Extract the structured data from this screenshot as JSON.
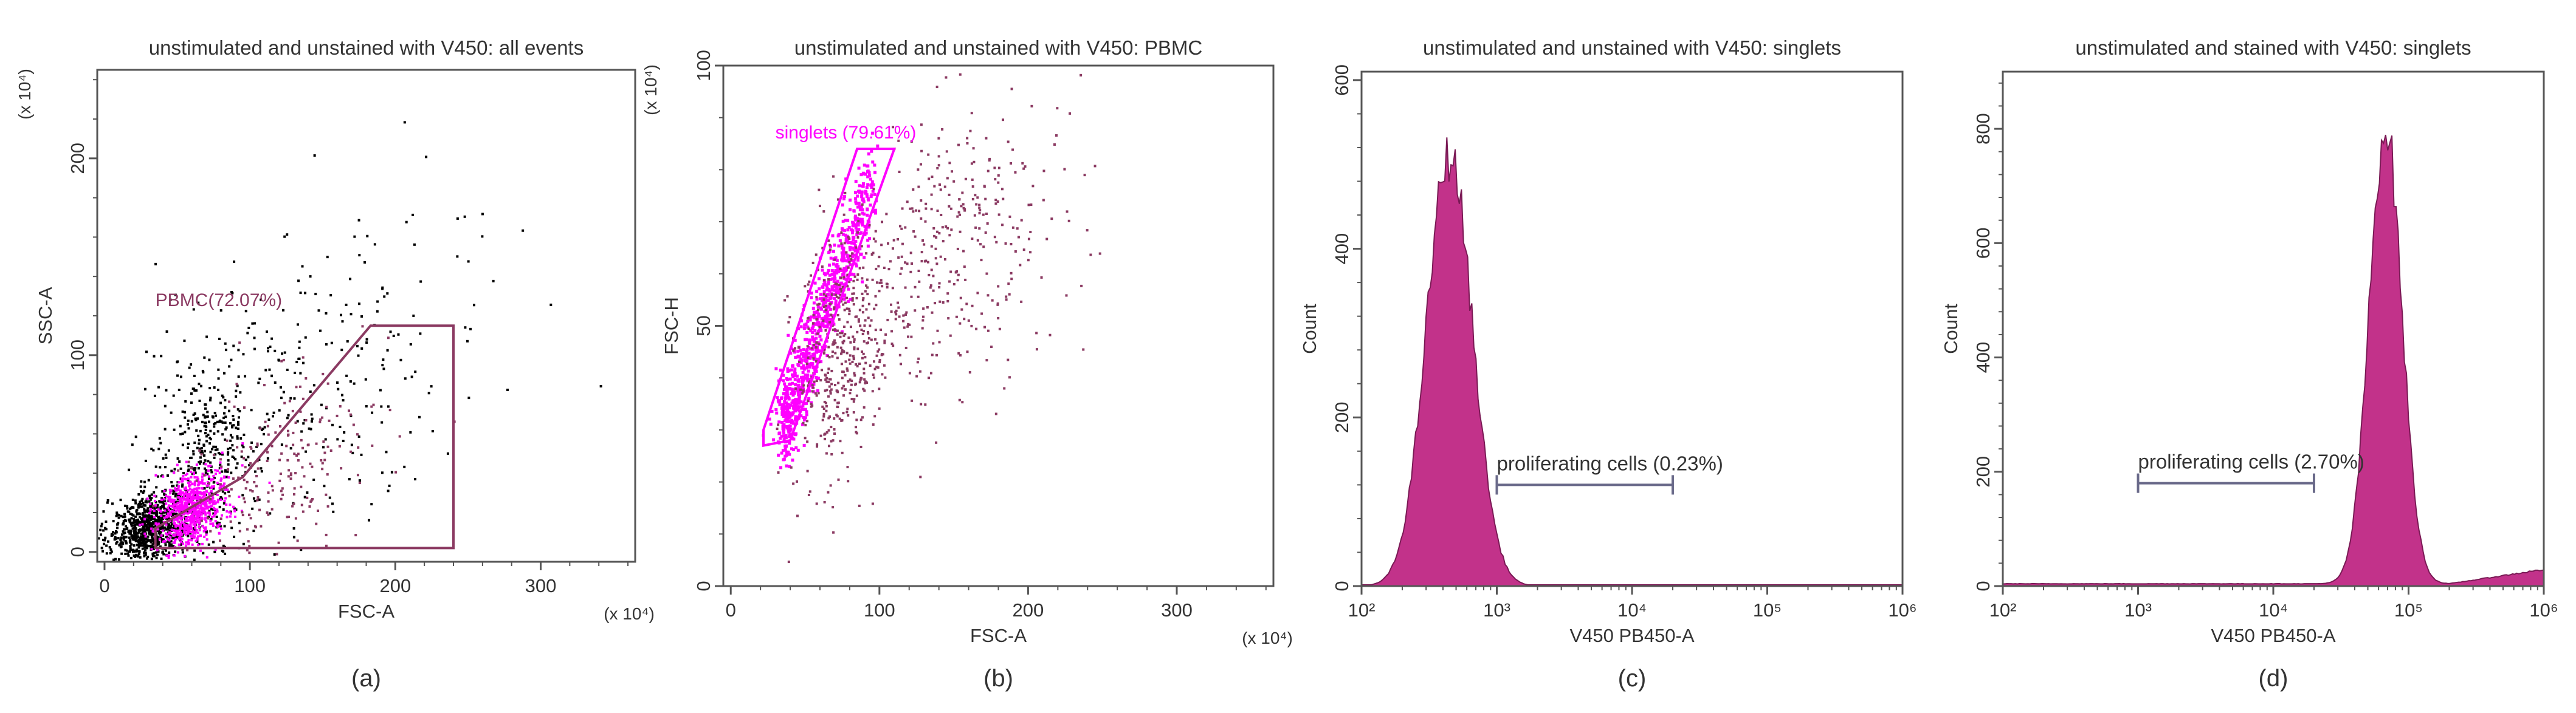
{
  "chart_data": [
    {
      "panel_label": "(a)",
      "type": "scatter",
      "title": "unstimulated and unstained with V450: all events",
      "xlabel": "FSC-A",
      "ylabel": "SSC-A",
      "x_scale_label": "(x 10⁴)",
      "y_scale_label": "(x 10⁴)",
      "xlim": [
        -5,
        365
      ],
      "ylim": [
        -5,
        245
      ],
      "xscale": "linear",
      "yscale": "linear",
      "x_ticks": [
        0,
        100,
        200,
        300
      ],
      "y_ticks": [
        0,
        100,
        200
      ],
      "grid": false,
      "series": [
        {
          "color": "#000000",
          "description": "all events",
          "clusters": [
            {
              "cx": 30,
              "cy": 12,
              "sx": 18,
              "sy": 8,
              "n": 900
            },
            {
              "cx": 70,
              "cy": 45,
              "sx": 25,
              "sy": 25,
              "n": 400
            },
            {
              "cx": 150,
              "cy": 90,
              "sx": 70,
              "sy": 45,
              "n": 250
            }
          ]
        },
        {
          "color": "#ff00ff",
          "description": "PBMC core",
          "clusters": [
            {
              "cx": 60,
              "cy": 22,
              "sx": 14,
              "sy": 9,
              "n": 700
            }
          ]
        },
        {
          "color": "#8b3a62",
          "description": "PBMC tail",
          "clusters": [
            {
              "cx": 120,
              "cy": 45,
              "sx": 40,
              "sy": 20,
              "n": 200
            }
          ]
        }
      ],
      "gate": {
        "label": "PBMC(72.07%)",
        "color": "#8b3a62",
        "polygon": [
          [
            35,
            2
          ],
          [
            240,
            2
          ],
          [
            240,
            115
          ],
          [
            183,
            115
          ],
          [
            95,
            38
          ],
          [
            35,
            12
          ]
        ],
        "label_at": [
          35,
          125
        ]
      }
    },
    {
      "panel_label": "(b)",
      "type": "scatter",
      "title": "unstimulated and unstained with V450: PBMC",
      "xlabel": "FSC-A",
      "ylabel": "FSC-H",
      "x_scale_label": "(x 10⁴)",
      "y_scale_label": "(x 10⁴)",
      "xlim": [
        -5,
        365
      ],
      "ylim": [
        0,
        100
      ],
      "xscale": "linear",
      "yscale": "linear",
      "x_ticks": [
        0,
        100,
        200,
        300
      ],
      "y_ticks": [
        0,
        50,
        100
      ],
      "grid": false,
      "series": [
        {
          "color": "#ff00ff",
          "description": "singlets",
          "diagonal": {
            "x0": 35,
            "y0": 30,
            "x1": 95,
            "y1": 78,
            "sx": 8,
            "sy": 4,
            "n": 900
          }
        },
        {
          "color": "#8b3a62",
          "description": "doublets",
          "clusters": [
            {
              "cx": 75,
              "cy": 45,
              "sx": 22,
              "sy": 12,
              "n": 450
            },
            {
              "cx": 150,
              "cy": 65,
              "sx": 45,
              "sy": 14,
              "n": 350
            }
          ]
        }
      ],
      "gate": {
        "label": "singlets (79.61%)",
        "color": "#ff00ff",
        "polygon": [
          [
            22,
            27
          ],
          [
            40,
            28
          ],
          [
            110,
            84
          ],
          [
            85,
            84
          ],
          [
            22,
            30
          ]
        ],
        "label_at": [
          30,
          86
        ]
      }
    },
    {
      "panel_label": "(c)",
      "type": "area",
      "title": "unstimulated and unstained with V450: singlets",
      "xlabel": "V450 PB450-A",
      "ylabel": "Count",
      "xscale": "log",
      "xlim": [
        100,
        1000000
      ],
      "ylim": [
        0,
        610
      ],
      "x_ticks": [
        100,
        1000,
        10000,
        100000,
        1000000
      ],
      "x_tick_labels": [
        "10²",
        "10³",
        "10⁴",
        "10⁵",
        "10⁶"
      ],
      "y_ticks": [
        0,
        200,
        400,
        600
      ],
      "grid": false,
      "fill": "#c2328a",
      "outline": "#7a1a55",
      "histogram": {
        "log_center": 2.65,
        "log_sigma": 0.17,
        "peak": 510,
        "baseline": 0
      },
      "gate": {
        "label": "proliferating cells (0.23%)",
        "x_start": 1000,
        "x_end": 20000,
        "y": 120
      }
    },
    {
      "panel_label": "(d)",
      "type": "area",
      "title": "unstimulated and stained with V450: singlets",
      "xlabel": "V450 PB450-A",
      "ylabel": "Count",
      "xscale": "log",
      "xlim": [
        100,
        1000000
      ],
      "ylim": [
        0,
        900
      ],
      "x_ticks": [
        100,
        1000,
        10000,
        100000,
        1000000
      ],
      "x_tick_labels": [
        "10²",
        "10³",
        "10⁴",
        "10⁵",
        "10⁶"
      ],
      "y_ticks": [
        0,
        200,
        400,
        600,
        800
      ],
      "grid": false,
      "fill": "#c2328a",
      "outline": "#7a1a55",
      "histogram": {
        "log_center": 4.83,
        "log_sigma": 0.12,
        "peak": 800,
        "baseline": 4,
        "tail_level": 25
      },
      "gate": {
        "label": "proliferating cells (2.70%)",
        "x_start": 1000,
        "x_end": 20000,
        "y": 180
      }
    }
  ]
}
